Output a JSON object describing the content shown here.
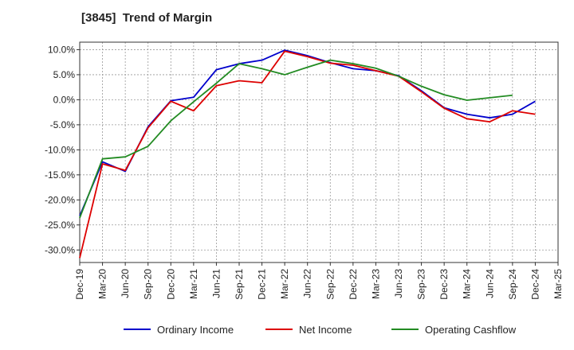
{
  "title": "[3845]  Trend of Margin",
  "chart_data": {
    "type": "line",
    "title": "[3845]  Trend of Margin",
    "x": [
      "Dec-19",
      "Mar-20",
      "Jun-20",
      "Sep-20",
      "Dec-20",
      "Mar-21",
      "Jun-21",
      "Sep-21",
      "Dec-21",
      "Mar-22",
      "Jun-22",
      "Sep-22",
      "Dec-22",
      "Mar-23",
      "Jun-23",
      "Sep-23",
      "Dec-23",
      "Mar-24",
      "Jun-24",
      "Sep-24",
      "Dec-24",
      "Mar-25"
    ],
    "ylim": [
      -32.5,
      11.5
    ],
    "yticks": [
      10,
      5,
      0,
      -5,
      -10,
      -15,
      -20,
      -25,
      -30
    ],
    "ytick_labels": [
      "10.0%",
      "5.0%",
      "0.0%",
      "-5.0%",
      "-10.0%",
      "-15.0%",
      "-20.0%",
      "-25.0%",
      "-30.0%"
    ],
    "grid": true,
    "legend_position": "bottom",
    "series": [
      {
        "name": "Ordinary Income",
        "color": "#0000cc",
        "points": [
          [
            "Dec-19",
            -23.2
          ],
          [
            "Mar-20",
            -12.4
          ],
          [
            "Jun-20",
            -14.3
          ],
          [
            "Sep-20",
            -5.4
          ],
          [
            "Dec-20",
            -0.2
          ],
          [
            "Mar-21",
            0.5
          ],
          [
            "Jun-21",
            6.0
          ],
          [
            "Sep-21",
            7.2
          ],
          [
            "Dec-21",
            7.9
          ],
          [
            "Mar-22",
            9.9
          ],
          [
            "Jun-22",
            8.8
          ],
          [
            "Sep-22",
            7.4
          ],
          [
            "Dec-22",
            6.2
          ],
          [
            "Mar-23",
            5.8
          ],
          [
            "Jun-23",
            4.8
          ],
          [
            "Sep-23",
            1.8
          ],
          [
            "Dec-23",
            -1.6
          ],
          [
            "Mar-24",
            -2.9
          ],
          [
            "Jun-24",
            -3.6
          ],
          [
            "Sep-24",
            -2.9
          ],
          [
            "Dec-24",
            -0.3
          ]
        ]
      },
      {
        "name": "Net Income",
        "color": "#dd0000",
        "points": [
          [
            "Dec-19",
            -31.6
          ],
          [
            "Mar-20",
            -12.8
          ],
          [
            "Jun-20",
            -14.1
          ],
          [
            "Sep-20",
            -5.6
          ],
          [
            "Dec-20",
            -0.3
          ],
          [
            "Mar-21",
            -2.2
          ],
          [
            "Jun-21",
            2.8
          ],
          [
            "Sep-21",
            3.8
          ],
          [
            "Dec-21",
            3.4
          ],
          [
            "Mar-22",
            9.7
          ],
          [
            "Jun-22",
            8.6
          ],
          [
            "Sep-22",
            7.3
          ],
          [
            "Dec-22",
            6.9
          ],
          [
            "Mar-23",
            5.8
          ],
          [
            "Jun-23",
            4.7
          ],
          [
            "Sep-23",
            1.6
          ],
          [
            "Dec-23",
            -1.7
          ],
          [
            "Mar-24",
            -3.8
          ],
          [
            "Jun-24",
            -4.4
          ],
          [
            "Sep-24",
            -2.2
          ],
          [
            "Dec-24",
            -2.9
          ]
        ]
      },
      {
        "name": "Operating Cashflow",
        "color": "#228b22",
        "points": [
          [
            "Dec-19",
            -23.6
          ],
          [
            "Mar-20",
            -11.8
          ],
          [
            "Jun-20",
            -11.4
          ],
          [
            "Sep-20",
            -9.3
          ],
          [
            "Dec-20",
            -4.2
          ],
          [
            "Mar-21",
            -0.4
          ],
          [
            "Jun-21",
            3.3
          ],
          [
            "Sep-21",
            7.2
          ],
          [
            "Dec-21",
            6.2
          ],
          [
            "Mar-22",
            5.0
          ],
          [
            "Jun-22",
            6.5
          ],
          [
            "Sep-22",
            7.9
          ],
          [
            "Dec-22",
            7.2
          ],
          [
            "Mar-23",
            6.3
          ],
          [
            "Jun-23",
            4.7
          ],
          [
            "Sep-23",
            2.7
          ],
          [
            "Dec-23",
            1.0
          ],
          [
            "Mar-24",
            -0.1
          ],
          [
            "Jun-24",
            0.4
          ],
          [
            "Sep-24",
            0.9
          ]
        ]
      }
    ]
  }
}
